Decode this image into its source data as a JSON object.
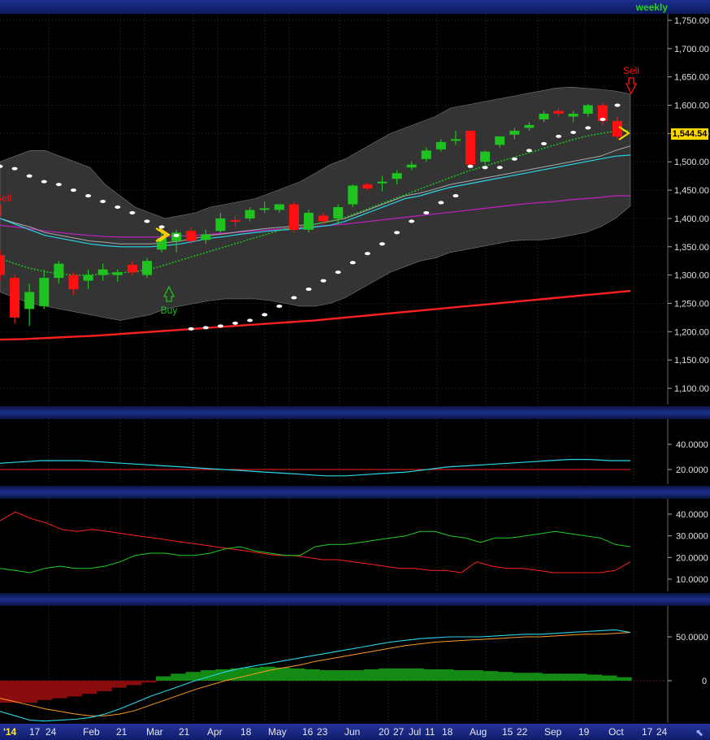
{
  "header": {
    "timeframe_label": "weekly"
  },
  "price_panel": {
    "y_ticks": [
      "1,750.00",
      "1,700.00",
      "1,650.00",
      "1,600.00",
      "1,550.00",
      "1,500.00",
      "1,450.00",
      "1,400.00",
      "1,350.00",
      "1,300.00",
      "1,250.00",
      "1,200.00",
      "1,150.00",
      "1,100.00"
    ],
    "last_price_label": "1,544.54",
    "buy_label": "Buy",
    "sell_label": "Sell",
    "sell_left_label": "Sell"
  },
  "panel2": {
    "y_ticks": [
      "40.0000",
      "20.0000"
    ]
  },
  "panel3": {
    "y_ticks": [
      "40.0000",
      "30.0000",
      "20.0000",
      "10.0000"
    ]
  },
  "panel4": {
    "y_ticks": [
      "50.0000",
      "0"
    ]
  },
  "x_axis": {
    "labels": [
      {
        "t": "'14",
        "year": true
      },
      {
        "t": "17"
      },
      {
        "t": "24"
      },
      {
        "t": "Feb"
      },
      {
        "t": "21"
      },
      {
        "t": "Mar"
      },
      {
        "t": "21"
      },
      {
        "t": "Apr"
      },
      {
        "t": "18"
      },
      {
        "t": "May"
      },
      {
        "t": "16"
      },
      {
        "t": "23"
      },
      {
        "t": "Jun"
      },
      {
        "t": "20"
      },
      {
        "t": "27"
      },
      {
        "t": "Jul"
      },
      {
        "t": "11"
      },
      {
        "t": "18"
      },
      {
        "t": "Aug"
      },
      {
        "t": "15"
      },
      {
        "t": "22"
      },
      {
        "t": "Sep"
      },
      {
        "t": "19"
      },
      {
        "t": "Oct"
      },
      {
        "t": "17"
      },
      {
        "t": "24"
      }
    ]
  },
  "colors": {
    "up": "#1fc21f",
    "down": "#ff1010",
    "bg": "#000000",
    "band": "#3a3a3a",
    "sar": "#ffffff",
    "sma_long": "#ff2020",
    "cyan": "#28d6e8",
    "magenta": "#c020c0",
    "green_dot": "#18d018"
  },
  "chart_data": [
    {
      "type": "candlestick",
      "title": "",
      "timeframe": "weekly",
      "ylim": [
        1075,
        1775
      ],
      "candles": [
        {
          "o": 1335,
          "h": 1345,
          "l": 1290,
          "c": 1300
        },
        {
          "o": 1295,
          "h": 1300,
          "l": 1215,
          "c": 1225
        },
        {
          "o": 1240,
          "h": 1285,
          "l": 1210,
          "c": 1270
        },
        {
          "o": 1245,
          "h": 1310,
          "l": 1240,
          "c": 1295
        },
        {
          "o": 1295,
          "h": 1325,
          "l": 1285,
          "c": 1320
        },
        {
          "o": 1300,
          "h": 1305,
          "l": 1265,
          "c": 1275
        },
        {
          "o": 1290,
          "h": 1310,
          "l": 1275,
          "c": 1300
        },
        {
          "o": 1300,
          "h": 1320,
          "l": 1290,
          "c": 1310
        },
        {
          "o": 1300,
          "h": 1310,
          "l": 1288,
          "c": 1305
        },
        {
          "o": 1318,
          "h": 1325,
          "l": 1300,
          "c": 1305
        },
        {
          "o": 1300,
          "h": 1330,
          "l": 1295,
          "c": 1325
        },
        {
          "o": 1345,
          "h": 1375,
          "l": 1340,
          "c": 1365
        },
        {
          "o": 1360,
          "h": 1380,
          "l": 1340,
          "c": 1375
        },
        {
          "o": 1378,
          "h": 1385,
          "l": 1355,
          "c": 1360
        },
        {
          "o": 1362,
          "h": 1380,
          "l": 1355,
          "c": 1372
        },
        {
          "o": 1378,
          "h": 1410,
          "l": 1375,
          "c": 1400
        },
        {
          "o": 1397,
          "h": 1405,
          "l": 1385,
          "c": 1395
        },
        {
          "o": 1400,
          "h": 1420,
          "l": 1395,
          "c": 1415
        },
        {
          "o": 1418,
          "h": 1430,
          "l": 1410,
          "c": 1418
        },
        {
          "o": 1415,
          "h": 1425,
          "l": 1410,
          "c": 1425
        },
        {
          "o": 1425,
          "h": 1430,
          "l": 1375,
          "c": 1380
        },
        {
          "o": 1380,
          "h": 1415,
          "l": 1375,
          "c": 1410
        },
        {
          "o": 1405,
          "h": 1410,
          "l": 1390,
          "c": 1395
        },
        {
          "o": 1400,
          "h": 1425,
          "l": 1390,
          "c": 1420
        },
        {
          "o": 1425,
          "h": 1460,
          "l": 1420,
          "c": 1458
        },
        {
          "o": 1460,
          "h": 1463,
          "l": 1450,
          "c": 1453
        },
        {
          "o": 1462,
          "h": 1475,
          "l": 1448,
          "c": 1465
        },
        {
          "o": 1470,
          "h": 1485,
          "l": 1460,
          "c": 1480
        },
        {
          "o": 1490,
          "h": 1500,
          "l": 1485,
          "c": 1495
        },
        {
          "o": 1505,
          "h": 1525,
          "l": 1500,
          "c": 1520
        },
        {
          "o": 1522,
          "h": 1540,
          "l": 1518,
          "c": 1535
        },
        {
          "o": 1540,
          "h": 1555,
          "l": 1530,
          "c": 1540
        },
        {
          "o": 1555,
          "h": 1555,
          "l": 1490,
          "c": 1495
        },
        {
          "o": 1500,
          "h": 1520,
          "l": 1495,
          "c": 1518
        },
        {
          "o": 1530,
          "h": 1545,
          "l": 1525,
          "c": 1545
        },
        {
          "o": 1548,
          "h": 1560,
          "l": 1540,
          "c": 1555
        },
        {
          "o": 1560,
          "h": 1570,
          "l": 1555,
          "c": 1565
        },
        {
          "o": 1575,
          "h": 1590,
          "l": 1570,
          "c": 1585
        },
        {
          "o": 1590,
          "h": 1595,
          "l": 1580,
          "c": 1585
        },
        {
          "o": 1580,
          "h": 1590,
          "l": 1570,
          "c": 1585
        },
        {
          "o": 1585,
          "h": 1602,
          "l": 1580,
          "c": 1600
        },
        {
          "o": 1600,
          "h": 1604,
          "l": 1565,
          "c": 1572
        },
        {
          "o": 1572,
          "h": 1580,
          "l": 1540,
          "c": 1544.54
        }
      ],
      "sar": [
        1492,
        1488,
        1475,
        1465,
        1460,
        1450,
        1440,
        1430,
        1420,
        1410,
        1395,
        1385,
        1370,
        1205,
        1207,
        1210,
        1215,
        1220,
        1230,
        1245,
        1260,
        1275,
        1290,
        1305,
        1322,
        1338,
        1355,
        1375,
        1395,
        1410,
        1428,
        1440,
        1492,
        1490,
        1490,
        1505,
        1520,
        1532,
        1545,
        1552,
        1560,
        1575,
        1600
      ],
      "band_upper": [
        1500,
        1510,
        1520,
        1520,
        1510,
        1500,
        1490,
        1460,
        1440,
        1420,
        1410,
        1400,
        1405,
        1410,
        1420,
        1425,
        1430,
        1435,
        1445,
        1455,
        1465,
        1480,
        1495,
        1505,
        1520,
        1535,
        1550,
        1560,
        1570,
        1580,
        1595,
        1600,
        1605,
        1610,
        1615,
        1620,
        1625,
        1630,
        1632,
        1630,
        1628,
        1625,
        1620
      ],
      "band_lower": [
        1270,
        1260,
        1250,
        1245,
        1240,
        1235,
        1230,
        1225,
        1220,
        1225,
        1230,
        1240,
        1245,
        1250,
        1255,
        1258,
        1258,
        1258,
        1255,
        1250,
        1245,
        1245,
        1250,
        1260,
        1275,
        1290,
        1305,
        1315,
        1325,
        1330,
        1340,
        1345,
        1350,
        1355,
        1360,
        1362,
        1362,
        1365,
        1370,
        1375,
        1385,
        1400,
        1422
      ],
      "ma_cyan": [
        1400,
        1390,
        1380,
        1370,
        1365,
        1360,
        1355,
        1352,
        1350,
        1350,
        1350,
        1352,
        1355,
        1360,
        1365,
        1368,
        1372,
        1375,
        1378,
        1380,
        1382,
        1385,
        1388,
        1395,
        1405,
        1415,
        1425,
        1435,
        1440,
        1448,
        1455,
        1460,
        1465,
        1470,
        1475,
        1480,
        1485,
        1490,
        1495,
        1500,
        1505,
        1510,
        1512
      ],
      "ma_gray": [
        1400,
        1392,
        1385,
        1375,
        1370,
        1365,
        1360,
        1358,
        1355,
        1355,
        1355,
        1357,
        1360,
        1365,
        1370,
        1373,
        1377,
        1380,
        1383,
        1385,
        1388,
        1390,
        1395,
        1400,
        1410,
        1420,
        1430,
        1440,
        1445,
        1452,
        1460,
        1465,
        1470,
        1475,
        1480,
        1485,
        1490,
        1495,
        1500,
        1505,
        1510,
        1520,
        1528
      ],
      "ma_magenta": [
        1388,
        1385,
        1382,
        1378,
        1375,
        1372,
        1370,
        1368,
        1367,
        1367,
        1367,
        1368,
        1369,
        1370,
        1372,
        1374,
        1376,
        1378,
        1380,
        1382,
        1384,
        1386,
        1388,
        1390,
        1393,
        1396,
        1399,
        1402,
        1405,
        1408,
        1411,
        1414,
        1417,
        1420,
        1423,
        1426,
        1428,
        1430,
        1433,
        1435,
        1437,
        1440,
        1440
      ],
      "ma_green_dotted": [
        1330,
        1320,
        1312,
        1306,
        1302,
        1300,
        1300,
        1302,
        1304,
        1306,
        1310,
        1318,
        1326,
        1334,
        1342,
        1350,
        1358,
        1366,
        1374,
        1382,
        1385,
        1390,
        1395,
        1402,
        1412,
        1422,
        1432,
        1442,
        1452,
        1462,
        1472,
        1482,
        1490,
        1498,
        1506,
        1514,
        1522,
        1530,
        1538,
        1545,
        1550,
        1554,
        1555
      ],
      "sma_long": [
        1186,
        1187,
        1189,
        1191,
        1193,
        1196,
        1199,
        1202,
        1205,
        1208,
        1211,
        1214,
        1217,
        1220,
        1224,
        1228,
        1232,
        1236,
        1240,
        1244,
        1248,
        1252,
        1256,
        1260,
        1264,
        1268,
        1272
      ]
    },
    {
      "type": "line",
      "ylim": [
        0,
        60
      ],
      "series": [
        {
          "values": [
            25,
            26,
            27,
            27,
            27,
            26,
            25,
            24,
            23,
            22,
            21,
            20,
            19,
            18,
            17,
            16,
            15,
            15,
            16,
            17,
            18,
            20,
            22,
            23,
            24,
            25,
            26,
            27,
            28,
            28,
            27,
            27
          ]
        },
        {
          "values": [
            20,
            20,
            20,
            20,
            20,
            20,
            20,
            20,
            20,
            20,
            20,
            20,
            20,
            20,
            20,
            20,
            20,
            20,
            20,
            20,
            20,
            20,
            20,
            20,
            20,
            20,
            20,
            20,
            20,
            20,
            20,
            20
          ]
        }
      ]
    },
    {
      "type": "line",
      "ylim": [
        5,
        45
      ],
      "series": [
        {
          "values": [
            37,
            41,
            38,
            36,
            33,
            32,
            33,
            32,
            31,
            30,
            29,
            28,
            27,
            26,
            25,
            24,
            23,
            22,
            21,
            21,
            20,
            19,
            19,
            18,
            17,
            16,
            15,
            15,
            14,
            14,
            13,
            18,
            16,
            15,
            15,
            14,
            13,
            13,
            13,
            13,
            14,
            18
          ]
        },
        {
          "values": [
            15,
            14,
            13,
            15,
            16,
            15,
            15,
            16,
            18,
            21,
            22,
            22,
            21,
            21,
            22,
            24,
            25,
            23,
            22,
            21,
            21,
            25,
            26,
            26,
            27,
            28,
            29,
            30,
            32,
            32,
            30,
            29,
            27,
            29,
            29,
            30,
            31,
            32,
            31,
            30,
            29,
            26,
            25
          ]
        }
      ]
    },
    {
      "type": "area",
      "ylim": [
        -60,
        80
      ],
      "histogram": [
        -25,
        -25,
        -25,
        -22,
        -20,
        -18,
        -15,
        -12,
        -8,
        -5,
        -2,
        5,
        8,
        10,
        12,
        13,
        14,
        15,
        16,
        15,
        14,
        13,
        12,
        12,
        12,
        13,
        14,
        14,
        14,
        13,
        13,
        12,
        12,
        11,
        10,
        9,
        9,
        8,
        8,
        8,
        7,
        6,
        4
      ],
      "series": [
        {
          "values": [
            -35,
            -40,
            -45,
            -46,
            -45,
            -44,
            -42,
            -38,
            -32,
            -25,
            -18,
            -12,
            -6,
            0,
            5,
            10,
            14,
            17,
            20,
            23,
            26,
            29,
            32,
            35,
            38,
            41,
            44,
            46,
            48,
            49,
            50,
            50,
            50,
            51,
            52,
            53,
            53,
            54,
            55,
            56,
            57,
            58,
            55
          ]
        },
        {
          "values": [
            -20,
            -24,
            -28,
            -32,
            -35,
            -38,
            -40,
            -40,
            -38,
            -34,
            -28,
            -22,
            -16,
            -10,
            -5,
            0,
            4,
            8,
            12,
            15,
            18,
            22,
            25,
            28,
            31,
            34,
            37,
            40,
            42,
            44,
            45,
            46,
            47,
            48,
            49,
            50,
            50,
            51,
            52,
            53,
            53,
            54,
            55
          ]
        }
      ]
    }
  ]
}
